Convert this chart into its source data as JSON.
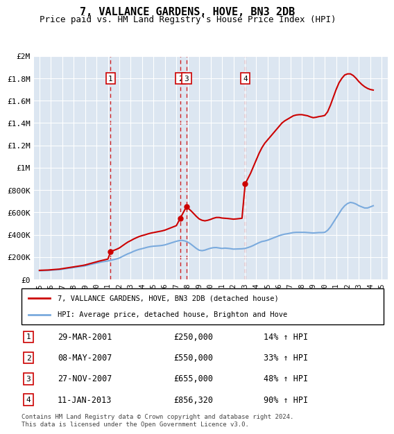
{
  "title": "7, VALLANCE GARDENS, HOVE, BN3 2DB",
  "subtitle": "Price paid vs. HM Land Registry's House Price Index (HPI)",
  "xlabel": "",
  "ylabel": "",
  "ylim": [
    0,
    2000000
  ],
  "xlim": [
    1994.5,
    2025.5
  ],
  "yticks": [
    0,
    200000,
    400000,
    600000,
    800000,
    1000000,
    1200000,
    1400000,
    1600000,
    1800000,
    2000000
  ],
  "ytick_labels": [
    "£0",
    "£200K",
    "£400K",
    "£600K",
    "£800K",
    "£1M",
    "£1.2M",
    "£1.4M",
    "£1.6M",
    "£1.8M",
    "£2M"
  ],
  "xticks": [
    1995,
    1996,
    1997,
    1998,
    1999,
    2000,
    2001,
    2002,
    2003,
    2004,
    2005,
    2006,
    2007,
    2008,
    2009,
    2010,
    2011,
    2012,
    2013,
    2014,
    2015,
    2016,
    2017,
    2018,
    2019,
    2020,
    2021,
    2022,
    2023,
    2024,
    2025
  ],
  "background_color": "#ffffff",
  "plot_bg_color": "#dce6f1",
  "grid_color": "#ffffff",
  "hpi_line_color": "#7aaadd",
  "price_line_color": "#cc0000",
  "vline_color": "#cc0000",
  "transactions": [
    {
      "id": 1,
      "date": "29-MAR-2001",
      "year": 2001.24,
      "price": 250000,
      "pct": "14%",
      "dir": "↑"
    },
    {
      "id": 2,
      "date": "08-MAY-2007",
      "year": 2007.35,
      "price": 550000,
      "pct": "33%",
      "dir": "↑"
    },
    {
      "id": 3,
      "date": "27-NOV-2007",
      "year": 2007.9,
      "price": 655000,
      "pct": "48%",
      "dir": "↑"
    },
    {
      "id": 4,
      "date": "11-JAN-2013",
      "year": 2013.03,
      "price": 856320,
      "pct": "90%",
      "dir": "↑"
    }
  ],
  "legend_line1": "7, VALLANCE GARDENS, HOVE, BN3 2DB (detached house)",
  "legend_line2": "HPI: Average price, detached house, Brighton and Hove",
  "footer": "Contains HM Land Registry data © Crown copyright and database right 2024.\nThis data is licensed under the Open Government Licence v3.0.",
  "hpi_data": {
    "years": [
      1995.0,
      1995.25,
      1995.5,
      1995.75,
      1996.0,
      1996.25,
      1996.5,
      1996.75,
      1997.0,
      1997.25,
      1997.5,
      1997.75,
      1998.0,
      1998.25,
      1998.5,
      1998.75,
      1999.0,
      1999.25,
      1999.5,
      1999.75,
      2000.0,
      2000.25,
      2000.5,
      2000.75,
      2001.0,
      2001.25,
      2001.5,
      2001.75,
      2002.0,
      2002.25,
      2002.5,
      2002.75,
      2003.0,
      2003.25,
      2003.5,
      2003.75,
      2004.0,
      2004.25,
      2004.5,
      2004.75,
      2005.0,
      2005.25,
      2005.5,
      2005.75,
      2006.0,
      2006.25,
      2006.5,
      2006.75,
      2007.0,
      2007.25,
      2007.5,
      2007.75,
      2008.0,
      2008.25,
      2008.5,
      2008.75,
      2009.0,
      2009.25,
      2009.5,
      2009.75,
      2010.0,
      2010.25,
      2010.5,
      2010.75,
      2011.0,
      2011.25,
      2011.5,
      2011.75,
      2012.0,
      2012.25,
      2012.5,
      2012.75,
      2013.0,
      2013.25,
      2013.5,
      2013.75,
      2014.0,
      2014.25,
      2014.5,
      2014.75,
      2015.0,
      2015.25,
      2015.5,
      2015.75,
      2016.0,
      2016.25,
      2016.5,
      2016.75,
      2017.0,
      2017.25,
      2017.5,
      2017.75,
      2018.0,
      2018.25,
      2018.5,
      2018.75,
      2019.0,
      2019.25,
      2019.5,
      2019.75,
      2020.0,
      2020.25,
      2020.5,
      2020.75,
      2021.0,
      2021.25,
      2021.5,
      2021.75,
      2022.0,
      2022.25,
      2022.5,
      2022.75,
      2023.0,
      2023.25,
      2023.5,
      2023.75,
      2024.0,
      2024.25
    ],
    "values": [
      78000,
      79000,
      80000,
      81000,
      83000,
      85000,
      87000,
      89000,
      92000,
      96000,
      100000,
      103000,
      107000,
      111000,
      115000,
      118000,
      122000,
      128000,
      135000,
      141000,
      147000,
      153000,
      158000,
      162000,
      166000,
      172000,
      178000,
      184000,
      192000,
      205000,
      218000,
      230000,
      240000,
      252000,
      262000,
      270000,
      276000,
      283000,
      290000,
      295000,
      298000,
      300000,
      302000,
      305000,
      310000,
      318000,
      326000,
      334000,
      342000,
      348000,
      350000,
      345000,
      335000,
      318000,
      298000,
      278000,
      262000,
      258000,
      263000,
      272000,
      280000,
      285000,
      286000,
      282000,
      278000,
      281000,
      279000,
      276000,
      272000,
      273000,
      274000,
      275000,
      278000,
      285000,
      294000,
      305000,
      318000,
      330000,
      340000,
      345000,
      352000,
      362000,
      372000,
      382000,
      392000,
      400000,
      406000,
      410000,
      415000,
      420000,
      422000,
      422000,
      422000,
      422000,
      420000,
      418000,
      416000,
      418000,
      420000,
      420000,
      422000,
      440000,
      470000,
      510000,
      550000,
      590000,
      630000,
      660000,
      680000,
      690000,
      685000,
      675000,
      660000,
      650000,
      640000,
      640000,
      650000,
      660000
    ]
  },
  "price_data": {
    "years": [
      1995.0,
      1995.25,
      1995.5,
      1995.75,
      1996.0,
      1996.25,
      1996.5,
      1996.75,
      1997.0,
      1997.25,
      1997.5,
      1997.75,
      1998.0,
      1998.25,
      1998.5,
      1998.75,
      1999.0,
      1999.25,
      1999.5,
      1999.75,
      2000.0,
      2000.25,
      2000.5,
      2000.75,
      2001.0,
      2001.24,
      2001.5,
      2001.75,
      2002.0,
      2002.25,
      2002.5,
      2002.75,
      2003.0,
      2003.25,
      2003.5,
      2003.75,
      2004.0,
      2004.25,
      2004.5,
      2004.75,
      2005.0,
      2005.25,
      2005.5,
      2005.75,
      2006.0,
      2006.25,
      2006.5,
      2006.75,
      2007.0,
      2007.35,
      2007.9,
      2008.0,
      2008.25,
      2008.5,
      2008.75,
      2009.0,
      2009.25,
      2009.5,
      2009.75,
      2010.0,
      2010.25,
      2010.5,
      2010.75,
      2011.0,
      2011.25,
      2011.5,
      2011.75,
      2012.0,
      2012.25,
      2012.5,
      2012.75,
      2013.03,
      2013.25,
      2013.5,
      2013.75,
      2014.0,
      2014.25,
      2014.5,
      2014.75,
      2015.0,
      2015.25,
      2015.5,
      2015.75,
      2016.0,
      2016.25,
      2016.5,
      2016.75,
      2017.0,
      2017.25,
      2017.5,
      2017.75,
      2018.0,
      2018.25,
      2018.5,
      2018.75,
      2019.0,
      2019.25,
      2019.5,
      2019.75,
      2020.0,
      2020.25,
      2020.5,
      2020.75,
      2021.0,
      2021.25,
      2021.5,
      2021.75,
      2022.0,
      2022.25,
      2022.5,
      2022.75,
      2023.0,
      2023.25,
      2023.5,
      2023.75,
      2024.0,
      2024.25
    ],
    "values": [
      82000,
      83000,
      84000,
      85000,
      87000,
      89000,
      91000,
      93000,
      97000,
      101000,
      105000,
      109000,
      113000,
      117000,
      121000,
      125000,
      130000,
      137000,
      144000,
      151000,
      158000,
      165000,
      171000,
      177000,
      183000,
      250000,
      260000,
      270000,
      282000,
      300000,
      318000,
      335000,
      348000,
      362000,
      374000,
      385000,
      393000,
      400000,
      408000,
      415000,
      420000,
      425000,
      430000,
      435000,
      442000,
      452000,
      462000,
      472000,
      482000,
      550000,
      655000,
      640000,
      618000,
      592000,
      565000,
      542000,
      530000,
      525000,
      530000,
      538000,
      548000,
      555000,
      555000,
      550000,
      548000,
      546000,
      543000,
      540000,
      542000,
      545000,
      548000,
      856320,
      900000,
      950000,
      1010000,
      1070000,
      1130000,
      1180000,
      1220000,
      1250000,
      1280000,
      1310000,
      1340000,
      1370000,
      1400000,
      1420000,
      1435000,
      1450000,
      1465000,
      1472000,
      1475000,
      1475000,
      1470000,
      1465000,
      1455000,
      1448000,
      1452000,
      1458000,
      1462000,
      1468000,
      1500000,
      1560000,
      1630000,
      1700000,
      1760000,
      1800000,
      1830000,
      1840000,
      1840000,
      1825000,
      1800000,
      1770000,
      1745000,
      1725000,
      1710000,
      1700000,
      1695000
    ]
  }
}
